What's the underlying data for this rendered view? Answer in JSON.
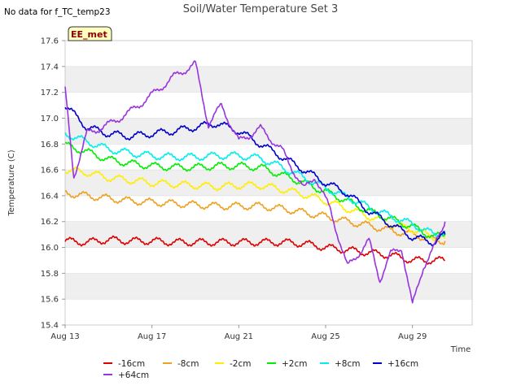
{
  "nodata_text": "No data for f_TC_temp23",
  "badge": {
    "label": "EE_met",
    "fill": "#ffffc0",
    "stroke": "#333333"
  },
  "chart_data": {
    "type": "line",
    "title": "Soil/Water Temperature Set 3",
    "xlabel": "Time",
    "ylabel": "Temperature (C)",
    "ylim": [
      15.4,
      17.6
    ],
    "yticks": [
      "15.4",
      "15.6",
      "15.8",
      "16.0",
      "16.2",
      "16.4",
      "16.6",
      "16.8",
      "17.0",
      "17.2",
      "17.4",
      "17.6"
    ],
    "xticks": [
      "Aug 13",
      "Aug 17",
      "Aug 21",
      "Aug 25",
      "Aug 29"
    ],
    "grid": "horizontal alternating bands",
    "legend_position": "bottom",
    "series": [
      {
        "name": "-16cm",
        "color": "#dd0000",
        "points": [
          [
            13.0,
            16.05
          ],
          [
            14.0,
            16.04
          ],
          [
            15.0,
            16.06
          ],
          [
            16.0,
            16.05
          ],
          [
            17.0,
            16.05
          ],
          [
            18.0,
            16.04
          ],
          [
            19.0,
            16.04
          ],
          [
            20.0,
            16.04
          ],
          [
            21.0,
            16.04
          ],
          [
            22.0,
            16.04
          ],
          [
            23.0,
            16.04
          ],
          [
            24.0,
            16.03
          ],
          [
            25.0,
            16.0
          ],
          [
            26.0,
            15.98
          ],
          [
            27.0,
            15.96
          ],
          [
            28.0,
            15.94
          ],
          [
            29.0,
            15.9
          ],
          [
            30.0,
            15.9
          ],
          [
            30.5,
            15.9
          ]
        ]
      },
      {
        "name": "-8cm",
        "color": "#f0a020",
        "points": [
          [
            13.0,
            16.42
          ],
          [
            14.0,
            16.4
          ],
          [
            15.0,
            16.38
          ],
          [
            16.0,
            16.36
          ],
          [
            17.0,
            16.35
          ],
          [
            18.0,
            16.34
          ],
          [
            19.0,
            16.33
          ],
          [
            20.0,
            16.32
          ],
          [
            21.0,
            16.32
          ],
          [
            22.0,
            16.32
          ],
          [
            23.0,
            16.3
          ],
          [
            24.0,
            16.27
          ],
          [
            25.0,
            16.24
          ],
          [
            26.0,
            16.2
          ],
          [
            27.0,
            16.17
          ],
          [
            28.0,
            16.13
          ],
          [
            29.0,
            16.1
          ],
          [
            30.0,
            16.06
          ],
          [
            30.5,
            16.05
          ]
        ]
      },
      {
        "name": "-2cm",
        "color": "#ffee00",
        "points": [
          [
            13.0,
            16.6
          ],
          [
            14.0,
            16.58
          ],
          [
            15.0,
            16.54
          ],
          [
            16.0,
            16.52
          ],
          [
            17.0,
            16.5
          ],
          [
            18.0,
            16.49
          ],
          [
            19.0,
            16.48
          ],
          [
            20.0,
            16.47
          ],
          [
            21.0,
            16.48
          ],
          [
            22.0,
            16.48
          ],
          [
            23.0,
            16.45
          ],
          [
            24.0,
            16.41
          ],
          [
            25.0,
            16.36
          ],
          [
            26.0,
            16.3
          ],
          [
            27.0,
            16.24
          ],
          [
            28.0,
            16.18
          ],
          [
            29.0,
            16.14
          ],
          [
            30.0,
            16.08
          ],
          [
            30.5,
            16.07
          ]
        ]
      },
      {
        "name": "+2cm",
        "color": "#00ee00",
        "points": [
          [
            13.0,
            16.79
          ],
          [
            14.0,
            16.74
          ],
          [
            15.0,
            16.68
          ],
          [
            16.0,
            16.65
          ],
          [
            17.0,
            16.63
          ],
          [
            18.0,
            16.62
          ],
          [
            19.0,
            16.62
          ],
          [
            20.0,
            16.63
          ],
          [
            21.0,
            16.63
          ],
          [
            22.0,
            16.62
          ],
          [
            23.0,
            16.56
          ],
          [
            24.0,
            16.5
          ],
          [
            25.0,
            16.43
          ],
          [
            26.0,
            16.36
          ],
          [
            27.0,
            16.28
          ],
          [
            28.0,
            16.22
          ],
          [
            29.0,
            16.16
          ],
          [
            30.0,
            16.08
          ],
          [
            30.5,
            16.1
          ]
        ]
      },
      {
        "name": "+8cm",
        "color": "#00eeee",
        "points": [
          [
            13.0,
            16.88
          ],
          [
            14.0,
            16.82
          ],
          [
            15.0,
            16.76
          ],
          [
            16.0,
            16.73
          ],
          [
            17.0,
            16.71
          ],
          [
            18.0,
            16.7
          ],
          [
            19.0,
            16.7
          ],
          [
            20.0,
            16.71
          ],
          [
            21.0,
            16.71
          ],
          [
            22.0,
            16.69
          ],
          [
            23.0,
            16.62
          ],
          [
            24.0,
            16.54
          ],
          [
            25.0,
            16.46
          ],
          [
            26.0,
            16.39
          ],
          [
            27.0,
            16.31
          ],
          [
            28.0,
            16.24
          ],
          [
            29.0,
            16.18
          ],
          [
            30.0,
            16.1
          ],
          [
            30.5,
            16.12
          ]
        ]
      },
      {
        "name": "+16cm",
        "color": "#0000cc",
        "points": [
          [
            13.0,
            17.1
          ],
          [
            14.0,
            16.93
          ],
          [
            15.0,
            16.88
          ],
          [
            16.0,
            16.86
          ],
          [
            17.0,
            16.88
          ],
          [
            18.0,
            16.9
          ],
          [
            19.0,
            16.93
          ],
          [
            20.0,
            16.96
          ],
          [
            21.0,
            16.9
          ],
          [
            22.0,
            16.8
          ],
          [
            23.0,
            16.7
          ],
          [
            24.0,
            16.6
          ],
          [
            25.0,
            16.5
          ],
          [
            26.0,
            16.42
          ],
          [
            27.0,
            16.28
          ],
          [
            28.0,
            16.18
          ],
          [
            29.0,
            16.08
          ],
          [
            30.0,
            16.04
          ],
          [
            30.5,
            16.1
          ]
        ]
      },
      {
        "name": "+64cm",
        "color": "#9933dd",
        "points": [
          [
            13.0,
            17.22
          ],
          [
            13.4,
            16.55
          ],
          [
            14.0,
            16.88
          ],
          [
            15.0,
            16.95
          ],
          [
            16.0,
            17.05
          ],
          [
            17.0,
            17.18
          ],
          [
            18.0,
            17.32
          ],
          [
            19.0,
            17.42
          ],
          [
            19.6,
            16.95
          ],
          [
            20.2,
            17.1
          ],
          [
            21.0,
            16.82
          ],
          [
            22.0,
            16.92
          ],
          [
            23.0,
            16.75
          ],
          [
            24.0,
            16.45
          ],
          [
            24.5,
            16.55
          ],
          [
            25.2,
            16.3
          ],
          [
            26.0,
            15.85
          ],
          [
            27.0,
            16.05
          ],
          [
            27.5,
            15.75
          ],
          [
            28.0,
            15.95
          ],
          [
            28.5,
            16.0
          ],
          [
            29.0,
            15.55
          ],
          [
            29.5,
            15.85
          ],
          [
            30.0,
            16.0
          ],
          [
            30.5,
            16.2
          ]
        ]
      }
    ]
  }
}
